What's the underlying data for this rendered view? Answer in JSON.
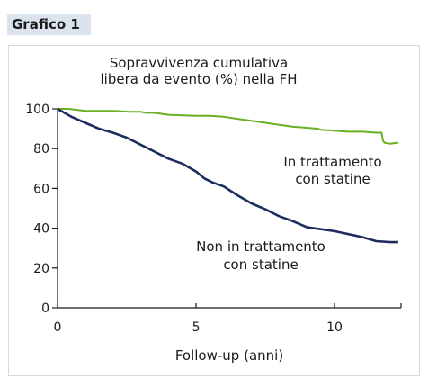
{
  "figure_label": "Grafico 1",
  "chart_data": {
    "type": "line",
    "title_lines": [
      "Sopravvivenza cumulativa",
      "libera da evento (%) nella FH"
    ],
    "xlabel": "Follow-up (anni)",
    "ylabel": "",
    "xlim": [
      0,
      12.4
    ],
    "ylim": [
      0,
      100
    ],
    "x_ticks": [
      0,
      5,
      10
    ],
    "y_ticks": [
      0,
      20,
      40,
      60,
      80,
      100
    ],
    "grid": false,
    "legend": "inline labels",
    "series": [
      {
        "name": "In trattamento con statine",
        "label_lines": [
          "In trattamento",
          "con statine"
        ],
        "color": "#6ab023",
        "points": [
          [
            0,
            100
          ],
          [
            0.4,
            100
          ],
          [
            1.0,
            99
          ],
          [
            2.0,
            99
          ],
          [
            2.6,
            98.5
          ],
          [
            3.0,
            98.5
          ],
          [
            3.2,
            98
          ],
          [
            3.5,
            98
          ],
          [
            4.0,
            97
          ],
          [
            5.0,
            96.5
          ],
          [
            5.5,
            96.5
          ],
          [
            6.0,
            96
          ],
          [
            6.5,
            95
          ],
          [
            7.0,
            94
          ],
          [
            7.5,
            93
          ],
          [
            8.0,
            92
          ],
          [
            8.5,
            91
          ],
          [
            9.0,
            90.5
          ],
          [
            9.4,
            90
          ],
          [
            9.5,
            89.5
          ],
          [
            10.0,
            89
          ],
          [
            10.5,
            88.5
          ],
          [
            11.0,
            88.5
          ],
          [
            11.5,
            88
          ],
          [
            11.7,
            88
          ],
          [
            11.75,
            84
          ],
          [
            11.8,
            83
          ],
          [
            12.0,
            82.5
          ],
          [
            12.3,
            83
          ]
        ]
      },
      {
        "name": "Non in trattamento con statine",
        "label_lines": [
          "Non in trattamento",
          "con statine"
        ],
        "color": "#1e2d5f",
        "points": [
          [
            0,
            100
          ],
          [
            0.5,
            96
          ],
          [
            1.0,
            93
          ],
          [
            1.5,
            90
          ],
          [
            2.0,
            88
          ],
          [
            2.5,
            85.5
          ],
          [
            3.0,
            82
          ],
          [
            3.5,
            78.5
          ],
          [
            4.0,
            75
          ],
          [
            4.5,
            72.5
          ],
          [
            5.0,
            68.5
          ],
          [
            5.3,
            65
          ],
          [
            5.6,
            63
          ],
          [
            6.0,
            61
          ],
          [
            6.5,
            56.5
          ],
          [
            7.0,
            52.5
          ],
          [
            7.5,
            49.5
          ],
          [
            8.0,
            46
          ],
          [
            8.5,
            43.5
          ],
          [
            9.0,
            40.5
          ],
          [
            9.5,
            39.5
          ],
          [
            10.0,
            38.5
          ],
          [
            10.5,
            37
          ],
          [
            11.0,
            35.5
          ],
          [
            11.5,
            33.5
          ],
          [
            12.0,
            33
          ],
          [
            12.3,
            33
          ]
        ]
      }
    ]
  }
}
